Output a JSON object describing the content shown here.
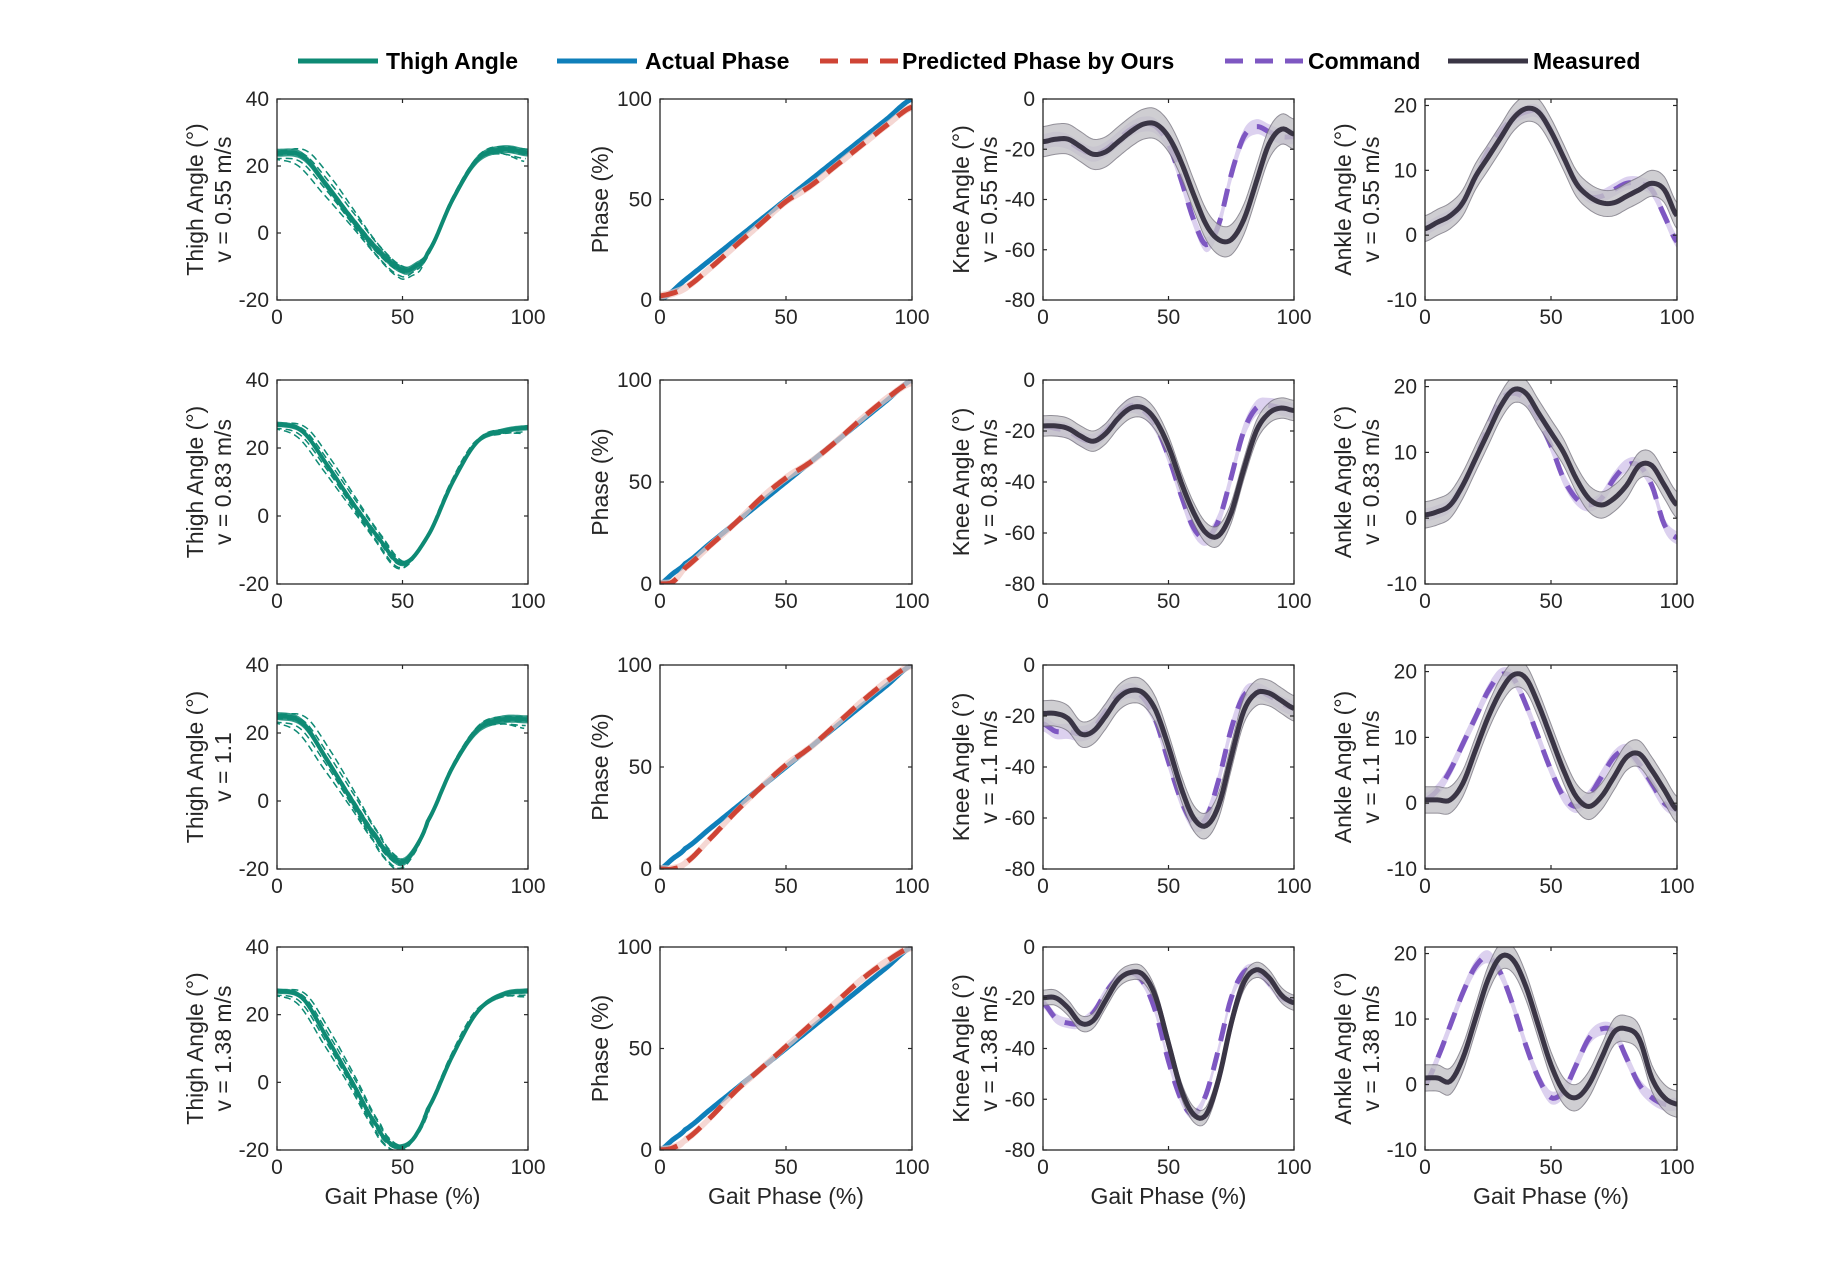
{
  "legend": {
    "thigh": "Thigh Angle",
    "actual": "Actual Phase",
    "predicted": "Predicted Phase by Ours",
    "command": "Command",
    "measured": "Measured"
  },
  "colors": {
    "thigh": "#0e8a74",
    "actual": "#0f7fba",
    "predicted": "#cf4435",
    "predicted_band": "#f1c6c0",
    "command": "#7e57c2",
    "command_band": "#cdbde8",
    "measured": "#3a3545",
    "measured_band": "#c4c3c8"
  },
  "xlabel": "Gait Phase (%)",
  "columns": [
    {
      "key": "thigh",
      "ylabel1": "Thigh Angle (°)",
      "ylim": [
        -20,
        40
      ],
      "yticks": [
        -20,
        0,
        20,
        40
      ]
    },
    {
      "key": "phase",
      "ylabel1": "Phase (%)",
      "ylim": [
        0,
        100
      ],
      "yticks": [
        0,
        50,
        100
      ]
    },
    {
      "key": "knee",
      "ylabel1": "Knee Angle (°)",
      "ylim": [
        -80,
        0
      ],
      "yticks": [
        -80,
        -60,
        -40,
        -20,
        0
      ]
    },
    {
      "key": "ankle",
      "ylabel1": "Ankle Angle (°)",
      "ylim": [
        -10,
        21
      ],
      "yticks": [
        -10,
        0,
        10,
        20
      ]
    }
  ],
  "rows": [
    {
      "speed_label": "v = 0.55 m/s",
      "thigh_label": "v = 0.55 m/s"
    },
    {
      "speed_label": "v = 0.83 m/s",
      "thigh_label": "v = 0.83 m/s"
    },
    {
      "speed_label": "v = 1.1 m/s",
      "thigh_label": "v = 1.1"
    },
    {
      "speed_label": "v = 1.38 m/s",
      "thigh_label": "v = 1.38 m/s"
    }
  ],
  "xticks": [
    0,
    50,
    100
  ],
  "chart_data": [
    {
      "type": "line",
      "row": 0,
      "col": 0,
      "ylabel": "Thigh Angle (°) v = 0.55 m/s",
      "x": [
        0,
        10,
        20,
        30,
        40,
        50,
        55,
        60,
        70,
        80,
        90,
        100
      ],
      "series": [
        {
          "name": "Thigh Angle",
          "values": [
            24,
            23,
            14,
            4,
            -5,
            -11,
            -10,
            -6,
            10,
            22,
            25,
            24
          ],
          "spread": 3
        }
      ]
    },
    {
      "type": "line",
      "row": 0,
      "col": 1,
      "ylabel": "Phase (%) v = 0.55 m/s",
      "x": [
        0,
        10,
        20,
        30,
        40,
        50,
        60,
        70,
        80,
        90,
        100
      ],
      "series": [
        {
          "name": "Actual Phase",
          "values": [
            0,
            10,
            20,
            30,
            40,
            50,
            60,
            70,
            80,
            90,
            100
          ]
        },
        {
          "name": "Predicted Phase by Ours",
          "values": [
            2,
            6,
            16,
            27,
            38,
            49,
            57,
            67,
            77,
            87,
            96
          ],
          "band": 2
        }
      ]
    },
    {
      "type": "line",
      "row": 0,
      "col": 2,
      "ylabel": "Knee Angle (°) v = 0.55 m/s",
      "x": [
        0,
        5,
        10,
        15,
        20,
        25,
        30,
        35,
        40,
        45,
        50,
        55,
        60,
        65,
        70,
        75,
        80,
        85,
        90,
        95,
        100
      ],
      "series": [
        {
          "name": "Command",
          "values": [
            -17,
            -16,
            -17,
            -20,
            -22,
            -20,
            -16,
            -12,
            -10,
            -11,
            -18,
            -32,
            -48,
            -58,
            -50,
            -30,
            -15,
            -11,
            -13,
            -15,
            -15
          ],
          "band": 3
        },
        {
          "name": "Measured",
          "values": [
            -17,
            -16,
            -16,
            -19,
            -22,
            -21,
            -17,
            -13,
            -10,
            -10,
            -15,
            -25,
            -38,
            -50,
            -56,
            -56,
            -48,
            -33,
            -18,
            -12,
            -14
          ],
          "band": 6
        }
      ]
    },
    {
      "type": "line",
      "row": 0,
      "col": 3,
      "ylabel": "Ankle Angle (°) v = 0.55 m/s",
      "x": [
        0,
        5,
        10,
        15,
        20,
        25,
        30,
        35,
        40,
        45,
        50,
        55,
        60,
        65,
        70,
        75,
        80,
        85,
        90,
        95,
        100
      ],
      "series": [
        {
          "name": "Command",
          "values": [
            1,
            2,
            3,
            5,
            9,
            13,
            16,
            18,
            19,
            19,
            16,
            12,
            8,
            6,
            6,
            7,
            8,
            8,
            7,
            3,
            -1
          ],
          "band": 1
        },
        {
          "name": "Measured",
          "values": [
            1,
            2,
            3,
            5,
            9,
            12,
            15,
            18,
            19.5,
            19,
            16,
            12,
            8,
            6,
            5,
            5,
            6,
            7,
            8,
            7,
            3
          ],
          "band": 2
        }
      ]
    },
    {
      "type": "line",
      "row": 1,
      "col": 0,
      "ylabel": "Thigh Angle (°) v = 0.83 m/s",
      "x": [
        0,
        10,
        20,
        30,
        40,
        50,
        60,
        70,
        80,
        90,
        100
      ],
      "series": [
        {
          "name": "Thigh Angle",
          "values": [
            27,
            25,
            15,
            4,
            -6,
            -14,
            -6,
            10,
            22,
            25,
            26
          ],
          "spread": 2
        }
      ]
    },
    {
      "type": "line",
      "row": 1,
      "col": 1,
      "ylabel": "Phase (%) v = 0.83 m/s",
      "x": [
        0,
        5,
        10,
        20,
        30,
        40,
        50,
        60,
        70,
        80,
        90,
        100
      ],
      "series": [
        {
          "name": "Actual Phase",
          "values": [
            0,
            5,
            10,
            20,
            30,
            40,
            50,
            60,
            70,
            80,
            90,
            100
          ]
        },
        {
          "name": "Predicted Phase by Ours",
          "values": [
            0,
            1,
            8,
            19,
            30,
            42,
            52,
            60,
            70,
            81,
            91,
            99
          ],
          "band": 2
        }
      ]
    },
    {
      "type": "line",
      "row": 1,
      "col": 2,
      "ylabel": "Knee Angle (°) v = 0.83 m/s",
      "x": [
        0,
        5,
        10,
        15,
        20,
        25,
        30,
        35,
        40,
        45,
        50,
        55,
        60,
        65,
        70,
        75,
        80,
        85,
        90,
        95,
        100
      ],
      "series": [
        {
          "name": "Command",
          "values": [
            -18,
            -19,
            -20,
            -23,
            -24,
            -20,
            -14,
            -10,
            -12,
            -18,
            -30,
            -45,
            -58,
            -62,
            -55,
            -38,
            -20,
            -11,
            -10,
            -11,
            -12
          ],
          "band": 3
        },
        {
          "name": "Measured",
          "values": [
            -18,
            -18,
            -19,
            -22,
            -24,
            -21,
            -15,
            -11,
            -11,
            -16,
            -26,
            -40,
            -52,
            -60,
            -61,
            -52,
            -35,
            -20,
            -13,
            -11,
            -12
          ],
          "band": 4
        }
      ]
    },
    {
      "type": "line",
      "row": 1,
      "col": 3,
      "ylabel": "Ankle Angle (°) v = 0.83 m/s",
      "x": [
        0,
        5,
        10,
        15,
        20,
        25,
        30,
        35,
        40,
        45,
        50,
        55,
        60,
        65,
        70,
        75,
        80,
        85,
        90,
        95,
        100
      ],
      "series": [
        {
          "name": "Command",
          "values": [
            0.5,
            1,
            2,
            5,
            9,
            14,
            18,
            19,
            18,
            15,
            11,
            6,
            3,
            2,
            3,
            6,
            8,
            8,
            5,
            -1,
            -3
          ],
          "band": 1
        },
        {
          "name": "Measured",
          "values": [
            0.5,
            1,
            2,
            5,
            9,
            13,
            17,
            19.5,
            19,
            16,
            13,
            10,
            6,
            3,
            2,
            3,
            5,
            8,
            8,
            5,
            2
          ],
          "band": 2
        }
      ]
    },
    {
      "type": "line",
      "row": 2,
      "col": 0,
      "ylabel": "Thigh Angle (°) v = 1.1",
      "x": [
        0,
        10,
        20,
        30,
        40,
        45,
        50,
        55,
        60,
        70,
        80,
        90,
        100
      ],
      "series": [
        {
          "name": "Thigh Angle",
          "values": [
            25,
            23,
            12,
            0,
            -11,
            -16,
            -18,
            -14,
            -6,
            10,
            21,
            24,
            24
          ],
          "spread": 3
        }
      ]
    },
    {
      "type": "line",
      "row": 2,
      "col": 1,
      "ylabel": "Phase (%) v = 1.1 m/s",
      "x": [
        0,
        5,
        10,
        20,
        30,
        40,
        50,
        60,
        70,
        80,
        90,
        100
      ],
      "series": [
        {
          "name": "Actual Phase",
          "values": [
            0,
            5,
            10,
            20,
            30,
            40,
            50,
            60,
            70,
            80,
            90,
            100
          ]
        },
        {
          "name": "Predicted Phase by Ours",
          "values": [
            0,
            0,
            3,
            15,
            28,
            40,
            51,
            60,
            71,
            82,
            92,
            100
          ],
          "band": 2
        }
      ]
    },
    {
      "type": "line",
      "row": 2,
      "col": 2,
      "ylabel": "Knee Angle (°) v = 1.1 m/s",
      "x": [
        0,
        5,
        10,
        15,
        20,
        25,
        30,
        35,
        40,
        45,
        50,
        55,
        60,
        65,
        70,
        75,
        80,
        85,
        90,
        95,
        100
      ],
      "series": [
        {
          "name": "Command",
          "values": [
            -23,
            -26,
            -26,
            -27,
            -25,
            -18,
            -12,
            -10,
            -13,
            -22,
            -38,
            -53,
            -62,
            -60,
            -45,
            -25,
            -12,
            -10,
            -12,
            -15,
            -17
          ],
          "band": 3
        },
        {
          "name": "Measured",
          "values": [
            -19,
            -19,
            -21,
            -27,
            -26,
            -20,
            -13,
            -10,
            -11,
            -18,
            -32,
            -48,
            -60,
            -63,
            -55,
            -36,
            -18,
            -11,
            -11,
            -14,
            -17
          ],
          "band": 5
        }
      ]
    },
    {
      "type": "line",
      "row": 2,
      "col": 3,
      "ylabel": "Ankle Angle (°) v = 1.1 m/s",
      "x": [
        0,
        5,
        10,
        15,
        20,
        25,
        30,
        35,
        40,
        45,
        50,
        55,
        60,
        65,
        70,
        75,
        80,
        85,
        90,
        95,
        100
      ],
      "series": [
        {
          "name": "Command",
          "values": [
            0.5,
            2,
            5,
            9,
            13,
            17,
            19.5,
            19,
            15,
            10,
            5,
            1,
            -0.5,
            1,
            4,
            7,
            8,
            6,
            3,
            0,
            -1
          ],
          "band": 1
        },
        {
          "name": "Measured",
          "values": [
            0.5,
            0.5,
            0.5,
            3,
            8,
            13,
            17,
            19.5,
            19,
            15,
            10,
            5,
            1,
            -0.5,
            1,
            4,
            7,
            7.5,
            5,
            2,
            -1
          ],
          "band": 2
        }
      ]
    },
    {
      "type": "line",
      "row": 3,
      "col": 0,
      "ylabel": "Thigh Angle (°) v = 1.38 m/s",
      "x": [
        0,
        10,
        20,
        30,
        40,
        45,
        50,
        55,
        60,
        70,
        80,
        90,
        100
      ],
      "series": [
        {
          "name": "Thigh Angle",
          "values": [
            27,
            25,
            13,
            0,
            -13,
            -18,
            -19,
            -16,
            -8,
            8,
            21,
            26,
            27
          ],
          "spread": 2
        }
      ]
    },
    {
      "type": "line",
      "row": 3,
      "col": 1,
      "ylabel": "Phase (%) v = 1.38 m/s",
      "x": [
        0,
        5,
        10,
        20,
        30,
        40,
        50,
        60,
        70,
        80,
        90,
        100
      ],
      "series": [
        {
          "name": "Actual Phase",
          "values": [
            0,
            5,
            10,
            20,
            30,
            40,
            50,
            60,
            70,
            80,
            90,
            100
          ]
        },
        {
          "name": "Predicted Phase by Ours",
          "values": [
            0,
            1,
            5,
            16,
            29,
            40,
            51,
            62,
            73,
            84,
            93,
            100
          ],
          "band": 2
        }
      ]
    },
    {
      "type": "line",
      "row": 3,
      "col": 2,
      "ylabel": "Knee Angle (°) v = 1.38 m/s",
      "x": [
        0,
        5,
        10,
        15,
        20,
        25,
        30,
        35,
        40,
        45,
        50,
        55,
        60,
        65,
        70,
        75,
        80,
        85,
        90,
        95,
        100
      ],
      "series": [
        {
          "name": "Command",
          "values": [
            -22,
            -28,
            -30,
            -30,
            -26,
            -18,
            -12,
            -10,
            -14,
            -26,
            -45,
            -60,
            -66,
            -58,
            -40,
            -20,
            -10,
            -9,
            -14,
            -20,
            -21
          ],
          "band": 2
        },
        {
          "name": "Measured",
          "values": [
            -20,
            -20,
            -24,
            -30,
            -29,
            -21,
            -13,
            -10,
            -11,
            -20,
            -38,
            -56,
            -66,
            -66,
            -52,
            -30,
            -14,
            -9,
            -12,
            -19,
            -22
          ],
          "band": 3
        }
      ]
    },
    {
      "type": "line",
      "row": 3,
      "col": 3,
      "ylabel": "Ankle Angle (°) v = 1.38 m/s",
      "x": [
        0,
        5,
        10,
        15,
        20,
        25,
        30,
        35,
        40,
        45,
        50,
        55,
        60,
        65,
        70,
        75,
        80,
        85,
        90,
        95,
        100
      ],
      "series": [
        {
          "name": "Command",
          "values": [
            0,
            4,
            9,
            14,
            18,
            19.5,
            17,
            12,
            6,
            1,
            -2,
            -1,
            3,
            7,
            8.5,
            8,
            4,
            0,
            -2,
            -3,
            -3
          ],
          "band": 1
        },
        {
          "name": "Measured",
          "values": [
            1,
            1,
            0.5,
            4,
            10,
            16,
            19.5,
            19,
            15,
            9,
            3,
            -1,
            -2,
            0,
            4,
            8,
            8.5,
            7,
            1,
            -2,
            -3
          ],
          "band": 2
        }
      ]
    }
  ]
}
